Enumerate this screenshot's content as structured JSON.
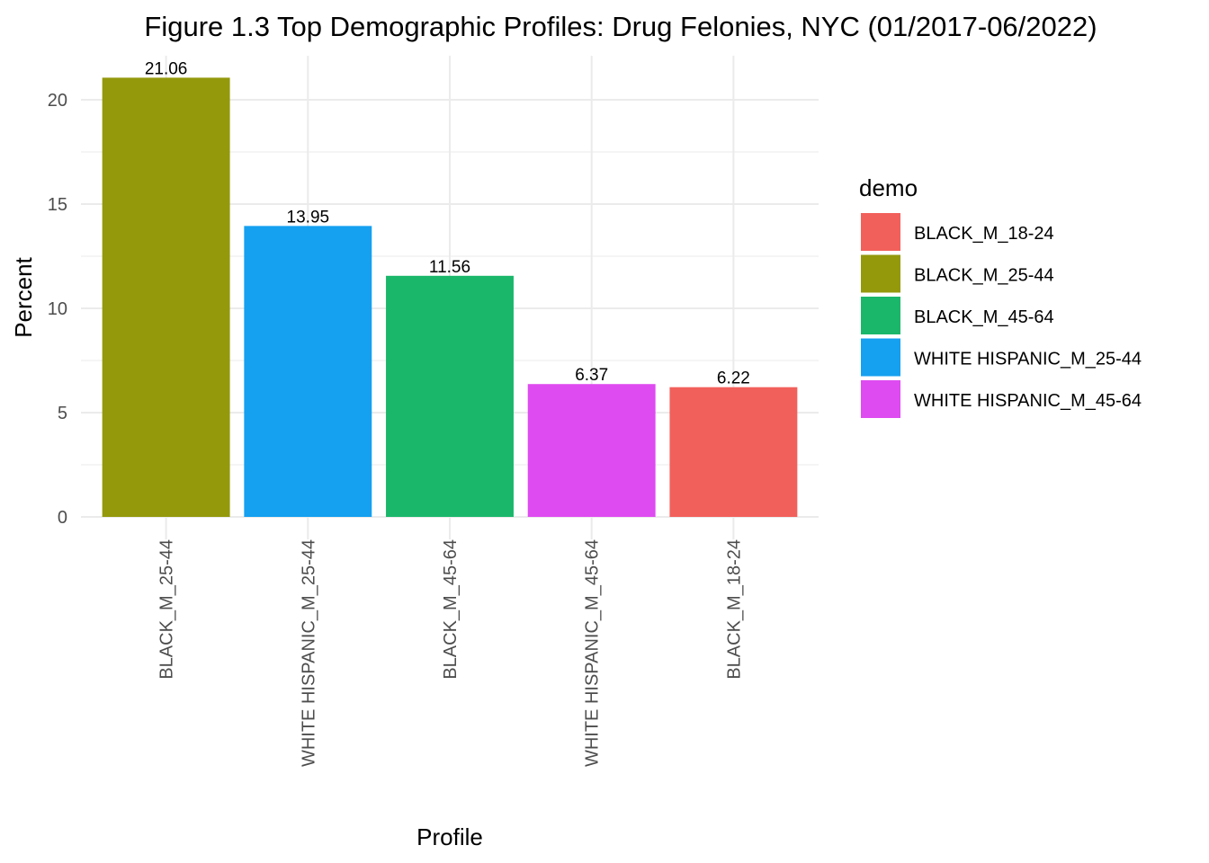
{
  "chart_data": {
    "type": "bar",
    "title": "Figure 1.3 Top Demographic Profiles: Drug Felonies, NYC (01/2017-06/2022)",
    "xlabel": "Profile",
    "ylabel": "Percent",
    "categories": [
      "BLACK_M_25-44",
      "WHITE HISPANIC_M_25-44",
      "BLACK_M_45-64",
      "WHITE HISPANIC_M_45-64",
      "BLACK_M_18-24"
    ],
    "values": [
      21.06,
      13.95,
      11.56,
      6.37,
      6.22
    ],
    "data_labels": [
      "21.06",
      "13.95",
      "11.56",
      "6.37",
      "6.22"
    ],
    "bar_colors": [
      "#93990B",
      "#15A0F0",
      "#1AB76A",
      "#DE4BF0",
      "#F2605B"
    ],
    "ylim": [
      0,
      22
    ],
    "yticks": [
      0,
      5,
      10,
      15,
      20
    ],
    "grid": true,
    "legend": {
      "title": "demo",
      "placement": "right",
      "entries": [
        {
          "label": "BLACK_M_18-24",
          "color": "#F2605B"
        },
        {
          "label": "BLACK_M_25-44",
          "color": "#93990B"
        },
        {
          "label": "BLACK_M_45-64",
          "color": "#1AB76A"
        },
        {
          "label": "WHITE HISPANIC_M_25-44",
          "color": "#15A0F0"
        },
        {
          "label": "WHITE HISPANIC_M_45-64",
          "color": "#DE4BF0"
        }
      ]
    }
  }
}
